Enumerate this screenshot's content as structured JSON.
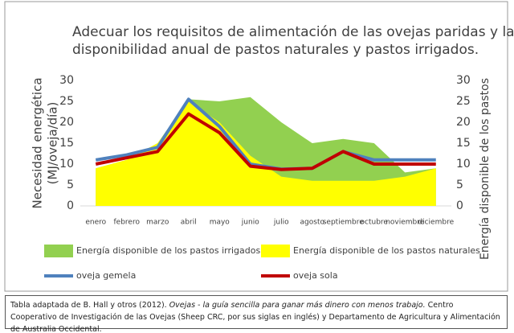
{
  "chart_data": {
    "type": "area_line",
    "title": [
      "Adecuar los requisitos de alimentación de las ovejas paridas y la",
      "disponibilidad anual de pastos naturales y pastos irrigados."
    ],
    "ylabel": [
      "Necesidad energética",
      "(MJ/oveja/día)"
    ],
    "y2label": "Energía disponible de los pastos",
    "categories": [
      "enero",
      "febrero",
      "marzo",
      "abril",
      "mayo",
      "junio",
      "julio",
      "agosto",
      "septiembre",
      "octubre",
      "noviembre",
      "diciembre"
    ],
    "ylim": [
      0,
      30
    ],
    "yticks": [
      0,
      5,
      10,
      15,
      20,
      25,
      30
    ],
    "y2lim": [
      0,
      30
    ],
    "y2ticks": [
      0,
      5,
      10,
      15,
      20,
      25,
      30
    ],
    "series": [
      {
        "name": "Energía disponible de los pastos irrigados",
        "kind": "area",
        "axis": "y2",
        "color": "#92d050",
        "values": [
          9,
          11,
          15,
          25.5,
          25,
          26,
          20,
          15,
          16,
          15,
          8,
          9
        ]
      },
      {
        "name": "Energía disponible de los pastos naturales",
        "kind": "area",
        "axis": "y2",
        "color": "#ffff00",
        "values": [
          9,
          11,
          15,
          25,
          20,
          12,
          7,
          6,
          6,
          6,
          7,
          9
        ]
      },
      {
        "name": "oveja gemela",
        "kind": "line",
        "color": "#4f81bd",
        "values": [
          11,
          12.2,
          14,
          25.5,
          19,
          10,
          8.8,
          9,
          13,
          11,
          11,
          11
        ]
      },
      {
        "name": "oveja sola",
        "kind": "line",
        "color": "#c00000",
        "values": [
          10,
          11.5,
          13,
          22,
          17.5,
          9.5,
          8.7,
          9,
          13,
          10,
          10,
          10
        ]
      }
    ],
    "source": [
      "Tabla adaptada de B. Hall y otros (2012). ",
      "Ovejas - la guía sencilla para ganar más dinero con menos trabajo.",
      " Centro Cooperativo de Investigación de las Ovejas (Sheep CRC, por sus siglas en inglés) y Departamento de Agricultura y Alimentación de Australia Occidental."
    ]
  }
}
